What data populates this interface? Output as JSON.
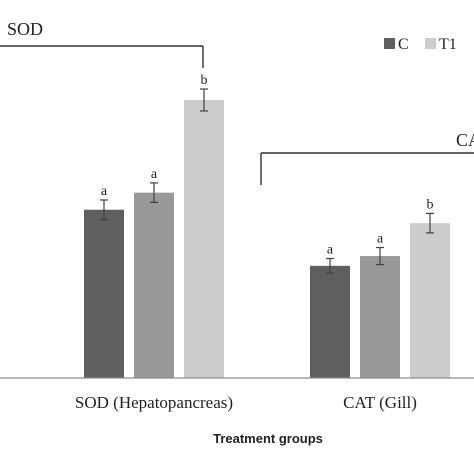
{
  "chart_data": {
    "type": "bar",
    "categories": [
      "SOD (Hepatopancreas)",
      "CAT (Gill)"
    ],
    "series": [
      {
        "name": "C",
        "color": "#5f5f5f",
        "values": [
          138,
          92
        ],
        "errors": [
          8,
          6
        ],
        "labels": [
          "a",
          "a"
        ]
      },
      {
        "name": "T1",
        "color": "#cccccc",
        "values": [
          228,
          127
        ],
        "errors": [
          9,
          8
        ],
        "labels": [
          "b",
          "b"
        ]
      }
    ],
    "extra_bars": [
      {
        "category": "SOD (Hepatopancreas)",
        "color": "#999999",
        "value": 152,
        "error": 8,
        "label": "a"
      },
      {
        "category": "CAT (Gill)",
        "color": "#999999",
        "value": 100,
        "error": 7,
        "label": "a"
      }
    ],
    "xlabel": "Treatment groups",
    "ylim": [
      0,
      310
    ],
    "legend_position": "top-right",
    "group_brackets": [
      {
        "label": "SOD"
      },
      {
        "label": "CA"
      }
    ]
  }
}
